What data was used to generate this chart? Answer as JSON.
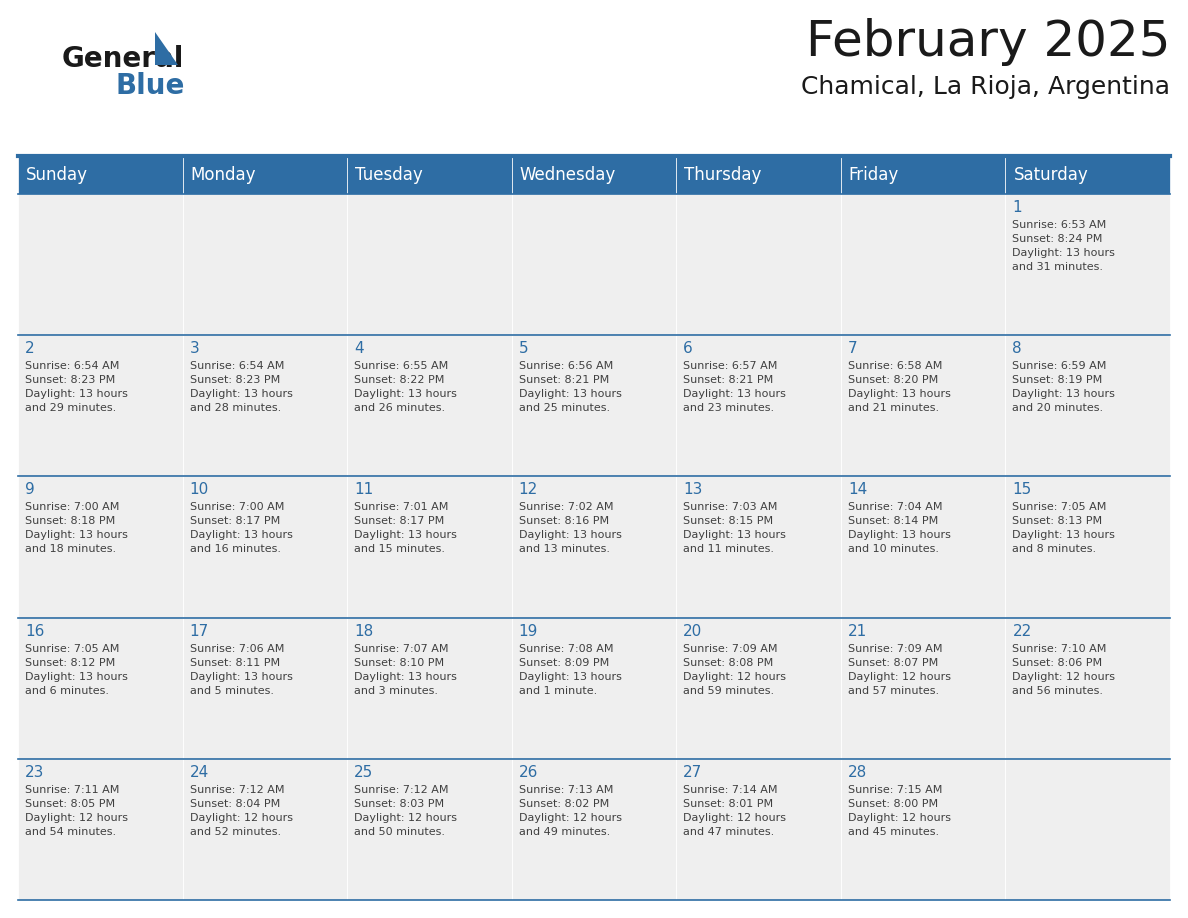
{
  "title": "February 2025",
  "subtitle": "Chamical, La Rioja, Argentina",
  "header_color": "#2E6DA4",
  "header_text_color": "#FFFFFF",
  "cell_bg_color": "#EFEFEF",
  "day_number_color": "#2E6DA4",
  "text_color": "#404040",
  "border_color": "#2E6DA4",
  "days_of_week": [
    "Sunday",
    "Monday",
    "Tuesday",
    "Wednesday",
    "Thursday",
    "Friday",
    "Saturday"
  ],
  "weeks": [
    [
      null,
      null,
      null,
      null,
      null,
      null,
      1
    ],
    [
      2,
      3,
      4,
      5,
      6,
      7,
      8
    ],
    [
      9,
      10,
      11,
      12,
      13,
      14,
      15
    ],
    [
      16,
      17,
      18,
      19,
      20,
      21,
      22
    ],
    [
      23,
      24,
      25,
      26,
      27,
      28,
      null
    ]
  ],
  "cell_data": {
    "1": {
      "sunrise": "6:53 AM",
      "sunset": "8:24 PM",
      "daylight_hours": 13,
      "daylight_minutes": 31
    },
    "2": {
      "sunrise": "6:54 AM",
      "sunset": "8:23 PM",
      "daylight_hours": 13,
      "daylight_minutes": 29
    },
    "3": {
      "sunrise": "6:54 AM",
      "sunset": "8:23 PM",
      "daylight_hours": 13,
      "daylight_minutes": 28
    },
    "4": {
      "sunrise": "6:55 AM",
      "sunset": "8:22 PM",
      "daylight_hours": 13,
      "daylight_minutes": 26
    },
    "5": {
      "sunrise": "6:56 AM",
      "sunset": "8:21 PM",
      "daylight_hours": 13,
      "daylight_minutes": 25
    },
    "6": {
      "sunrise": "6:57 AM",
      "sunset": "8:21 PM",
      "daylight_hours": 13,
      "daylight_minutes": 23
    },
    "7": {
      "sunrise": "6:58 AM",
      "sunset": "8:20 PM",
      "daylight_hours": 13,
      "daylight_minutes": 21
    },
    "8": {
      "sunrise": "6:59 AM",
      "sunset": "8:19 PM",
      "daylight_hours": 13,
      "daylight_minutes": 20
    },
    "9": {
      "sunrise": "7:00 AM",
      "sunset": "8:18 PM",
      "daylight_hours": 13,
      "daylight_minutes": 18
    },
    "10": {
      "sunrise": "7:00 AM",
      "sunset": "8:17 PM",
      "daylight_hours": 13,
      "daylight_minutes": 16
    },
    "11": {
      "sunrise": "7:01 AM",
      "sunset": "8:17 PM",
      "daylight_hours": 13,
      "daylight_minutes": 15
    },
    "12": {
      "sunrise": "7:02 AM",
      "sunset": "8:16 PM",
      "daylight_hours": 13,
      "daylight_minutes": 13
    },
    "13": {
      "sunrise": "7:03 AM",
      "sunset": "8:15 PM",
      "daylight_hours": 13,
      "daylight_minutes": 11
    },
    "14": {
      "sunrise": "7:04 AM",
      "sunset": "8:14 PM",
      "daylight_hours": 13,
      "daylight_minutes": 10
    },
    "15": {
      "sunrise": "7:05 AM",
      "sunset": "8:13 PM",
      "daylight_hours": 13,
      "daylight_minutes": 8
    },
    "16": {
      "sunrise": "7:05 AM",
      "sunset": "8:12 PM",
      "daylight_hours": 13,
      "daylight_minutes": 6
    },
    "17": {
      "sunrise": "7:06 AM",
      "sunset": "8:11 PM",
      "daylight_hours": 13,
      "daylight_minutes": 5
    },
    "18": {
      "sunrise": "7:07 AM",
      "sunset": "8:10 PM",
      "daylight_hours": 13,
      "daylight_minutes": 3
    },
    "19": {
      "sunrise": "7:08 AM",
      "sunset": "8:09 PM",
      "daylight_hours": 13,
      "daylight_minutes": 1
    },
    "20": {
      "sunrise": "7:09 AM",
      "sunset": "8:08 PM",
      "daylight_hours": 12,
      "daylight_minutes": 59
    },
    "21": {
      "sunrise": "7:09 AM",
      "sunset": "8:07 PM",
      "daylight_hours": 12,
      "daylight_minutes": 57
    },
    "22": {
      "sunrise": "7:10 AM",
      "sunset": "8:06 PM",
      "daylight_hours": 12,
      "daylight_minutes": 56
    },
    "23": {
      "sunrise": "7:11 AM",
      "sunset": "8:05 PM",
      "daylight_hours": 12,
      "daylight_minutes": 54
    },
    "24": {
      "sunrise": "7:12 AM",
      "sunset": "8:04 PM",
      "daylight_hours": 12,
      "daylight_minutes": 52
    },
    "25": {
      "sunrise": "7:12 AM",
      "sunset": "8:03 PM",
      "daylight_hours": 12,
      "daylight_minutes": 50
    },
    "26": {
      "sunrise": "7:13 AM",
      "sunset": "8:02 PM",
      "daylight_hours": 12,
      "daylight_minutes": 49
    },
    "27": {
      "sunrise": "7:14 AM",
      "sunset": "8:01 PM",
      "daylight_hours": 12,
      "daylight_minutes": 47
    },
    "28": {
      "sunrise": "7:15 AM",
      "sunset": "8:00 PM",
      "daylight_hours": 12,
      "daylight_minutes": 45
    }
  },
  "logo_general_color": "#1a1a1a",
  "logo_blue_color": "#2E6DA4",
  "title_fontsize": 36,
  "subtitle_fontsize": 18,
  "header_fontsize": 12,
  "day_num_fontsize": 11,
  "cell_text_fontsize": 8
}
